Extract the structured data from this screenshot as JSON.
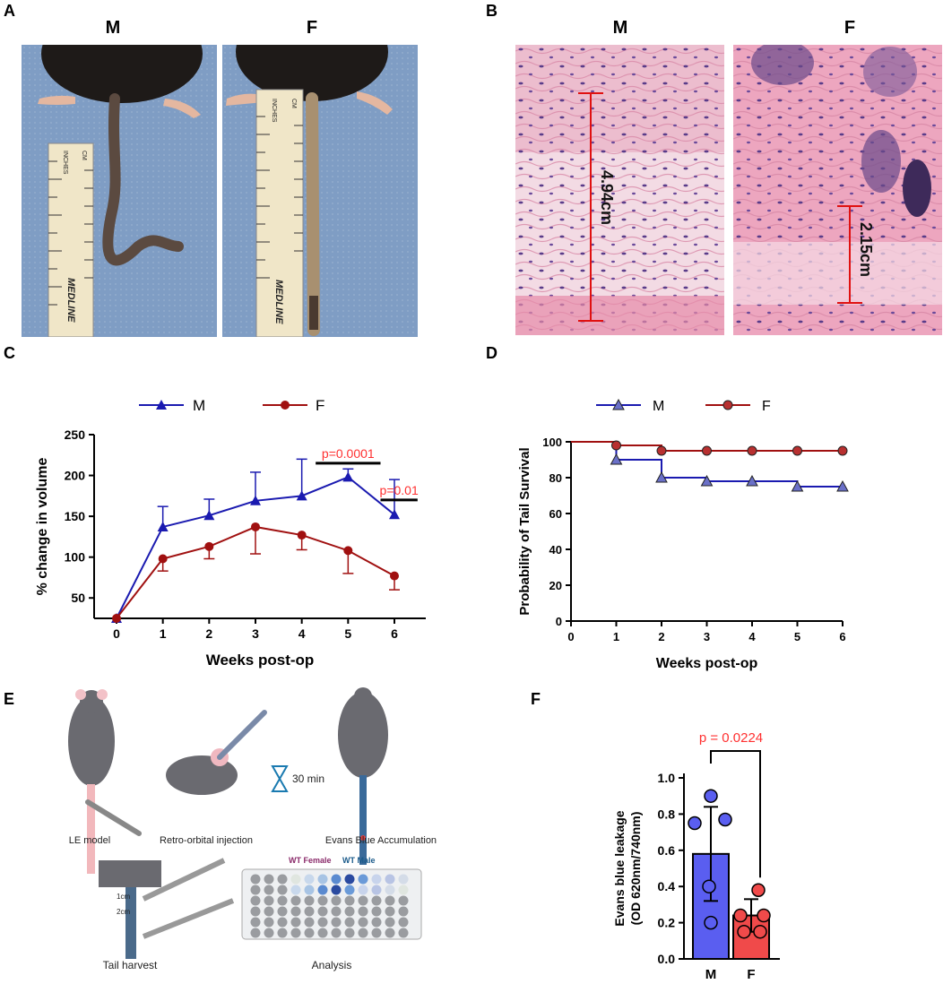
{
  "panels": {
    "A": {
      "label": "A",
      "left_label": "M",
      "right_label": "F",
      "ruler_texts": [
        "INCHES",
        "CM",
        "MEDLINE"
      ]
    },
    "B": {
      "label": "B",
      "left_label": "M",
      "right_label": "F",
      "left_measure": "4.94cm",
      "right_measure": "2.15cm"
    },
    "C": {
      "label": "C"
    },
    "D": {
      "label": "D"
    },
    "E": {
      "label": "E",
      "captions": {
        "le_model": "LE model",
        "retro": "Retro-orbital injection",
        "timer": "30 min",
        "evans": "Evans Blue Accumulation",
        "tail": "Tail harvest",
        "analysis": "Analysis",
        "wt_female": "WT Female",
        "wt_male": "WT Male",
        "dim_2cm": "2cm",
        "dim_1cm": "1cm"
      }
    },
    "F": {
      "label": "F"
    }
  },
  "colors": {
    "male_blue": "#1a1ab0",
    "female_red": "#a01010",
    "stat_red": "#ff3030",
    "bar_blue": "#5a5ef0",
    "bar_red": "#f04a4a",
    "histo_pink": "#f0c6d4",
    "photo_bg": "#7f9dc4",
    "ruler": "#f0e6c8"
  },
  "chart_data": [
    {
      "id": "C",
      "type": "line",
      "x": [
        0,
        1,
        2,
        3,
        4,
        5,
        6
      ],
      "xlabel": "Weeks post-op",
      "ylabel": "% change in volume",
      "ylim": [
        25,
        250
      ],
      "yticks": [
        50,
        100,
        150,
        200,
        250
      ],
      "legend": [
        "M",
        "F"
      ],
      "legend_position": "top",
      "series": [
        {
          "name": "M",
          "values": [
            25,
            137,
            151,
            169,
            175,
            198,
            152
          ],
          "error": [
            0,
            25,
            20,
            35,
            45,
            10,
            43
          ]
        },
        {
          "name": "F",
          "values": [
            25,
            98,
            113,
            137,
            127,
            108,
            77
          ],
          "error": [
            0,
            15,
            15,
            33,
            18,
            28,
            17
          ]
        }
      ],
      "annotations": [
        {
          "text": "p=0.0001",
          "x_from": 4.3,
          "x_to": 5.7,
          "y": 215
        },
        {
          "text": "p=0.01",
          "x_from": 5.7,
          "x_to": 6.5,
          "y": 170
        }
      ]
    },
    {
      "id": "D",
      "type": "line",
      "subtype": "step",
      "x": [
        0,
        1,
        2,
        3,
        4,
        5,
        6
      ],
      "xlabel": "Weeks post-op",
      "ylabel": "Probability of Tail Survival",
      "ylim": [
        0,
        100
      ],
      "yticks": [
        0,
        20,
        40,
        60,
        80,
        100
      ],
      "legend": [
        "M",
        "F"
      ],
      "legend_position": "top",
      "series": [
        {
          "name": "M",
          "values": [
            100,
            90,
            80,
            78,
            78,
            75,
            75
          ]
        },
        {
          "name": "F",
          "values": [
            100,
            98,
            95,
            95,
            95,
            95,
            95
          ]
        }
      ]
    },
    {
      "id": "F",
      "type": "bar",
      "categories": [
        "M",
        "F"
      ],
      "values": [
        0.58,
        0.24
      ],
      "error": [
        0.26,
        0.09
      ],
      "ylabel": "Evans blue leakage\n(OD 620nm/740nm)",
      "ylabel_line1": "Evans blue leakage",
      "ylabel_line2": "(OD 620nm/740nm)",
      "ylim": [
        0,
        1.0
      ],
      "yticks": [
        0.0,
        0.2,
        0.4,
        0.6,
        0.8,
        1.0
      ],
      "points": [
        [
          0.9,
          0.75,
          0.77,
          0.4,
          0.2
        ],
        [
          0.38,
          0.24,
          0.24,
          0.15,
          0.15
        ]
      ],
      "annotation": "p = 0.0224"
    }
  ]
}
